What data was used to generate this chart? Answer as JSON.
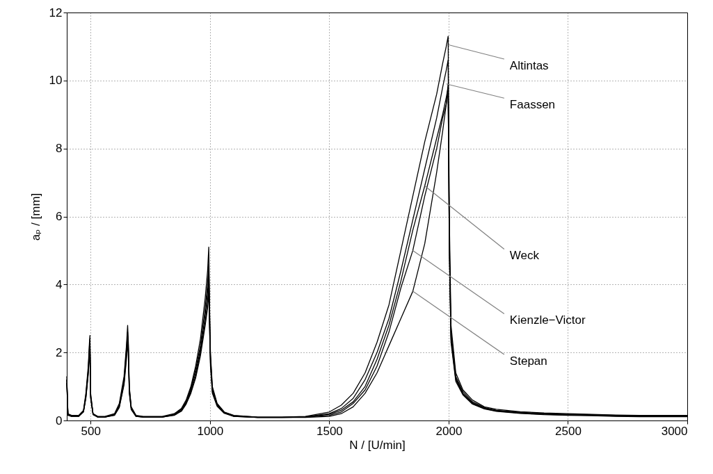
{
  "chart_data": {
    "type": "line",
    "xlabel": "N / [U/min]",
    "ylabel": "aₚ / [mm]",
    "xlim": [
      400,
      3000
    ],
    "xticks": [
      500,
      1000,
      1500,
      2000,
      2500,
      3000
    ],
    "ylim": [
      0,
      12
    ],
    "yticks": [
      0,
      2,
      4,
      6,
      8,
      10,
      12
    ],
    "grid": true,
    "line_style": "solid",
    "x": [
      400,
      405,
      420,
      450,
      470,
      480,
      490,
      495,
      497,
      500,
      510,
      530,
      560,
      600,
      620,
      640,
      650,
      655,
      658,
      662,
      670,
      690,
      720,
      800,
      850,
      880,
      900,
      920,
      940,
      960,
      980,
      990,
      995,
      998,
      1002,
      1010,
      1030,
      1060,
      1100,
      1200,
      1300,
      1400,
      1500,
      1550,
      1600,
      1650,
      1700,
      1750,
      1800,
      1850,
      1900,
      1950,
      1975,
      1990,
      1998,
      2003,
      2010,
      2030,
      2060,
      2100,
      2150,
      2200,
      2300,
      2400,
      2500,
      2600,
      2700,
      2800,
      2900,
      3000
    ],
    "series": [
      {
        "color": "#000000",
        "values": [
          1.3,
          0.2,
          0.15,
          0.15,
          0.3,
          0.8,
          1.6,
          2.3,
          2.5,
          0.8,
          0.2,
          0.12,
          0.12,
          0.2,
          0.5,
          1.3,
          2.2,
          2.8,
          2.3,
          1.0,
          0.4,
          0.15,
          0.12,
          0.12,
          0.2,
          0.35,
          0.6,
          1.0,
          1.6,
          2.4,
          3.6,
          4.4,
          5.1,
          3.5,
          2.0,
          1.0,
          0.5,
          0.25,
          0.15,
          0.1,
          0.1,
          0.12,
          0.25,
          0.45,
          0.8,
          1.4,
          2.3,
          3.4,
          5.0,
          6.6,
          8.2,
          9.6,
          10.5,
          11.0,
          11.3,
          6.0,
          2.8,
          1.4,
          0.9,
          0.6,
          0.4,
          0.33,
          0.26,
          0.22,
          0.2,
          0.18,
          0.16,
          0.15,
          0.15,
          0.15
        ]
      },
      {
        "color": "#000000",
        "values": [
          1.2,
          0.18,
          0.14,
          0.14,
          0.28,
          0.75,
          1.5,
          2.2,
          2.4,
          0.75,
          0.2,
          0.11,
          0.11,
          0.18,
          0.45,
          1.2,
          2.1,
          2.6,
          2.2,
          0.95,
          0.38,
          0.14,
          0.11,
          0.11,
          0.18,
          0.33,
          0.55,
          0.95,
          1.5,
          2.2,
          3.3,
          4.0,
          4.6,
          3.3,
          1.9,
          0.95,
          0.48,
          0.24,
          0.14,
          0.1,
          0.1,
          0.11,
          0.2,
          0.35,
          0.65,
          1.2,
          2.0,
          3.0,
          4.4,
          5.9,
          7.4,
          8.9,
          9.8,
          10.3,
          10.6,
          5.5,
          2.6,
          1.3,
          0.85,
          0.55,
          0.38,
          0.3,
          0.24,
          0.2,
          0.18,
          0.17,
          0.15,
          0.14,
          0.14,
          0.14
        ]
      },
      {
        "color": "#000000",
        "values": [
          1.2,
          0.17,
          0.13,
          0.13,
          0.27,
          0.7,
          1.45,
          2.1,
          2.3,
          0.7,
          0.19,
          0.1,
          0.1,
          0.17,
          0.42,
          1.15,
          2.0,
          2.5,
          2.1,
          0.9,
          0.36,
          0.13,
          0.1,
          0.1,
          0.17,
          0.3,
          0.52,
          0.9,
          1.4,
          2.1,
          3.1,
          3.8,
          4.3,
          3.1,
          1.8,
          0.9,
          0.46,
          0.23,
          0.13,
          0.09,
          0.09,
          0.1,
          0.18,
          0.3,
          0.55,
          1.0,
          1.8,
          2.8,
          4.1,
          5.6,
          6.9,
          8.3,
          9.0,
          9.5,
          9.8,
          5.2,
          2.5,
          1.25,
          0.8,
          0.52,
          0.36,
          0.29,
          0.23,
          0.19,
          0.17,
          0.16,
          0.14,
          0.13,
          0.13,
          0.13
        ]
      },
      {
        "color": "#000000",
        "values": [
          1.1,
          0.16,
          0.12,
          0.12,
          0.26,
          0.68,
          1.4,
          2.0,
          2.2,
          0.68,
          0.18,
          0.1,
          0.1,
          0.16,
          0.4,
          1.1,
          1.9,
          2.4,
          2.0,
          0.85,
          0.34,
          0.12,
          0.1,
          0.1,
          0.16,
          0.28,
          0.5,
          0.85,
          1.3,
          2.0,
          2.9,
          3.5,
          4.0,
          2.9,
          1.7,
          0.85,
          0.44,
          0.22,
          0.12,
          0.09,
          0.09,
          0.1,
          0.15,
          0.25,
          0.5,
          0.9,
          1.6,
          2.6,
          3.9,
          5.0,
          6.6,
          8.0,
          8.9,
          9.3,
          9.7,
          5.0,
          2.4,
          1.2,
          0.78,
          0.5,
          0.35,
          0.28,
          0.22,
          0.18,
          0.16,
          0.15,
          0.13,
          0.12,
          0.12,
          0.12
        ]
      },
      {
        "color": "#000000",
        "values": [
          1.1,
          0.15,
          0.12,
          0.12,
          0.25,
          0.65,
          1.35,
          1.9,
          2.1,
          0.65,
          0.17,
          0.1,
          0.1,
          0.15,
          0.38,
          1.05,
          1.8,
          2.3,
          1.9,
          0.8,
          0.32,
          0.12,
          0.1,
          0.1,
          0.15,
          0.27,
          0.48,
          0.8,
          1.25,
          1.9,
          2.8,
          3.3,
          3.8,
          2.8,
          1.6,
          0.8,
          0.42,
          0.21,
          0.12,
          0.09,
          0.09,
          0.09,
          0.12,
          0.2,
          0.4,
          0.8,
          1.4,
          2.2,
          3.0,
          3.8,
          5.2,
          7.3,
          8.5,
          9.3,
          9.9,
          5.1,
          2.3,
          1.15,
          0.75,
          0.48,
          0.34,
          0.27,
          0.21,
          0.17,
          0.15,
          0.14,
          0.12,
          0.11,
          0.11,
          0.11
        ]
      }
    ],
    "annotations": [
      {
        "text": "Altintas",
        "x": 2000,
        "y": 11.05
      },
      {
        "text": "Faassen",
        "x": 1990,
        "y": 9.9
      },
      {
        "text": "Weck",
        "x": 1900,
        "y": 6.9
      },
      {
        "text": "Kienzle−Victor",
        "x": 1850,
        "y": 5.0
      },
      {
        "text": "Stepan",
        "x": 1850,
        "y": 3.8
      }
    ]
  }
}
